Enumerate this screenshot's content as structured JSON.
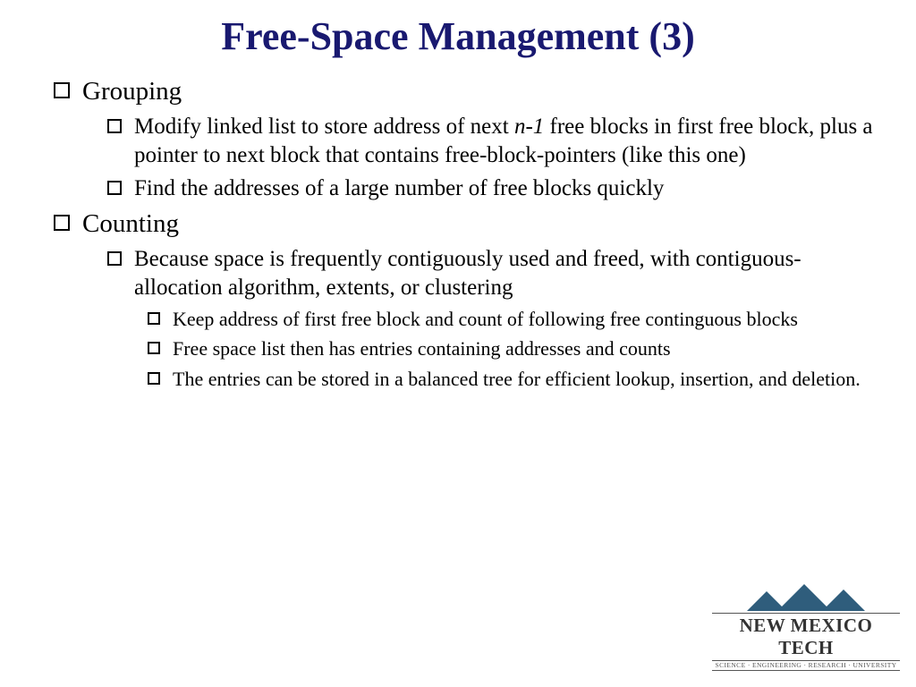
{
  "title": "Free-Space Management (3)",
  "bullets": {
    "b1": "Grouping",
    "b1a_pre": "Modify linked list to store address of next ",
    "b1a_it": "n-1",
    "b1a_post": " free blocks in first free block, plus a pointer to next block that contains free-block-pointers (like this one)",
    "b1b": "Find the addresses of a large number of free blocks quickly",
    "b2": "Counting",
    "b2a": "Because space is frequently contiguously used and freed,  with contiguous-allocation algorithm, extents, or clustering",
    "b2a1": "Keep address of first free block and count of following free continguous blocks",
    "b2a2": "Free space list then has entries containing addresses and counts",
    "b2a3": "The entries can be stored in a balanced tree for efficient lookup, insertion, and deletion."
  },
  "logo": {
    "name": "NEW MEXICO TECH",
    "tagline": "SCIENCE · ENGINEERING · RESEARCH · UNIVERSITY",
    "mountain_color": "#2f5d7c"
  },
  "colors": {
    "title": "#191970",
    "text": "#000000",
    "background": "#ffffff"
  }
}
